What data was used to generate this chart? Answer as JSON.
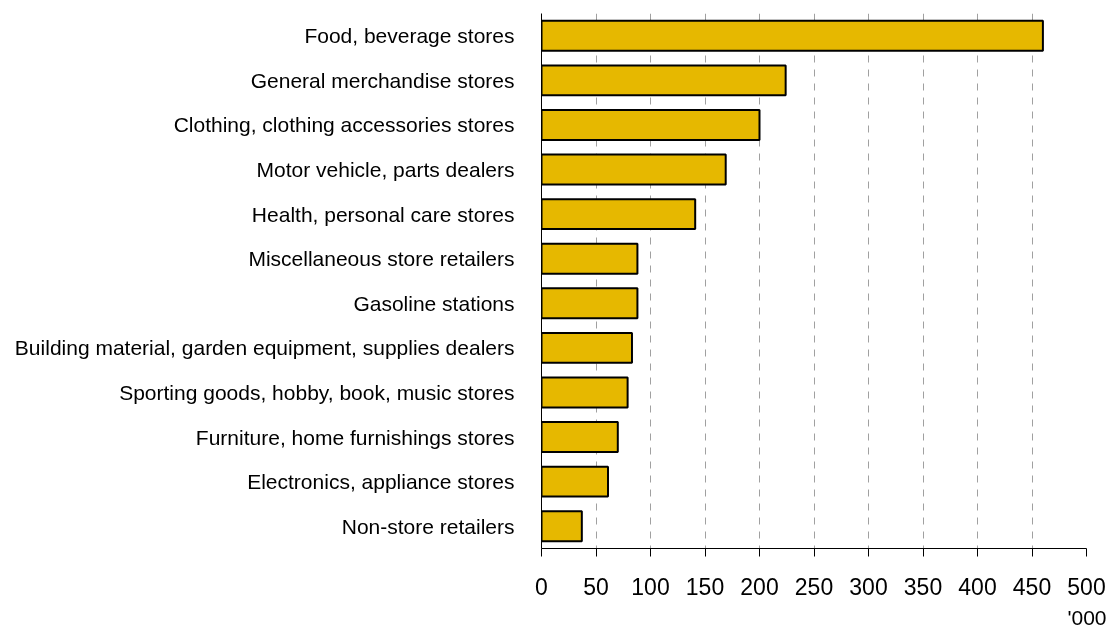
{
  "chart_data": {
    "type": "bar",
    "orientation": "horizontal",
    "categories": [
      "Food, beverage stores",
      "General merchandise stores",
      "Clothing, clothing accessories stores",
      "Motor vehicle, parts dealers",
      "Health, personal care stores",
      "Miscellaneous store retailers",
      "Gasoline stations",
      "Building material, garden equipment, supplies dealers",
      "Sporting goods, hobby, book, music stores",
      "Furniture, home furnishings stores",
      "Electronics, appliance stores",
      "Non-store retailers"
    ],
    "values": [
      460,
      224,
      200,
      169,
      141,
      88,
      88,
      83,
      79,
      70,
      61,
      37
    ],
    "color": "#e6b800",
    "xlabel": "'000",
    "xlim": [
      0,
      500
    ],
    "xticks": [
      0,
      50,
      100,
      150,
      200,
      250,
      300,
      350,
      400,
      450,
      500
    ],
    "grid": "x"
  }
}
